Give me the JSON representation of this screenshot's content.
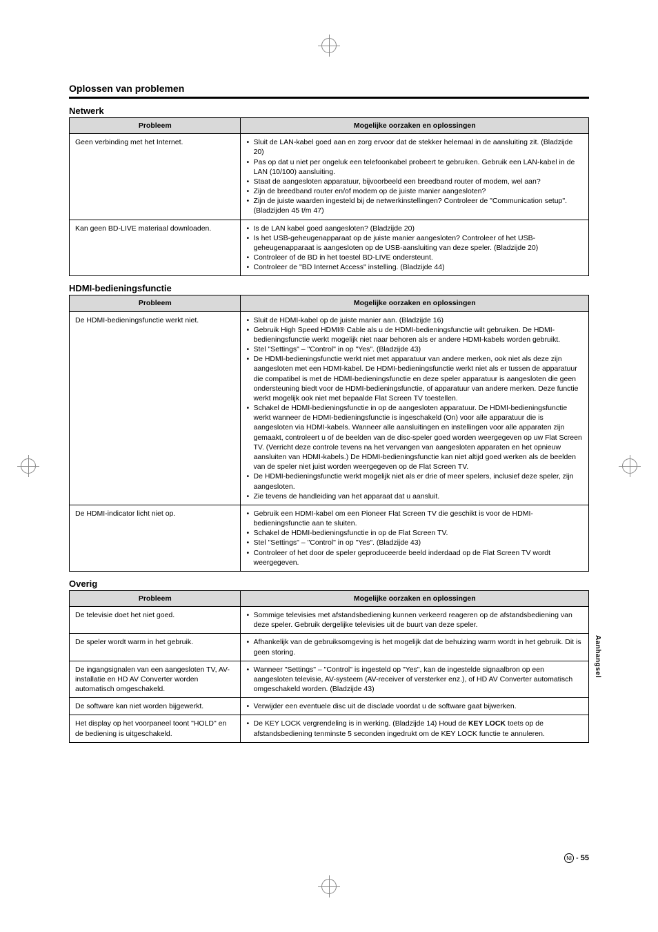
{
  "page": {
    "title": "Oplossen van problemen",
    "sideTab": "Aanhangsel",
    "pageNumber": "55",
    "langMark": "Nl"
  },
  "netwerk": {
    "heading": "Netwerk",
    "col1": "Probleem",
    "col2": "Mogelijke oorzaken en oplossingen",
    "rows": [
      {
        "p": "Geen verbinding met het Internet.",
        "items": [
          "Sluit de LAN-kabel goed aan en zorg ervoor dat de stekker helemaal in de aansluiting zit. (Bladzijde 20)",
          "Pas op dat u niet per ongeluk een telefoonkabel probeert te gebruiken. Gebruik een LAN-kabel in de LAN (10/100) aansluiting.",
          "Staat de aangesloten apparatuur, bijvoorbeeld een breedband router of modem, wel aan?",
          "Zijn de breedband router en/of modem op de juiste manier aangesloten?",
          "Zijn de juiste waarden ingesteld bij de netwerkinstellingen? Controleer de \"Communication setup\". (Bladzijden 45 t/m 47)"
        ]
      },
      {
        "p": "Kan geen BD-LIVE materiaal downloaden.",
        "items": [
          "Is de LAN kabel goed aangesloten? (Bladzijde 20)",
          "Is het USB-geheugenapparaat op de juiste manier aangesloten? Controleer of het USB-geheugenapparaat is aangesloten op de USB-aansluiting van deze speler. (Bladzijde 20)",
          "Controleer of de BD in het toestel BD-LIVE ondersteunt.",
          "Controleer de \"BD Internet Access\" instelling. (Bladzijde 44)"
        ]
      }
    ]
  },
  "hdmi": {
    "heading": "HDMI-bedieningsfunctie",
    "col1": "Probleem",
    "col2": "Mogelijke oorzaken en oplossingen",
    "rows": [
      {
        "p": "De HDMI-bedieningsfunctie werkt niet.",
        "items": [
          "Sluit de HDMI-kabel op de juiste manier aan. (Bladzijde 16)",
          "Gebruik High Speed HDMI® Cable als u de HDMI-bedieningsfunctie wilt gebruiken. De HDMI-bedieningsfunctie werkt mogelijk niet naar behoren als er andere HDMI-kabels worden gebruikt.",
          "Stel \"Settings\" – \"Control\" in op \"Yes\". (Bladzijde 43)",
          "De HDMI-bedieningsfunctie werkt niet met apparatuur van andere merken, ook niet als deze zijn aangesloten met een HDMI-kabel. De HDMI-bedieningsfunctie werkt niet als er tussen de apparatuur die compatibel is met de HDMI-bedieningsfunctie en deze speler apparatuur is aangesloten die geen ondersteuning biedt voor de HDMI-bedieningsfunctie, of apparatuur van andere merken. Deze functie werkt mogelijk ook niet met bepaalde Flat Screen TV toestellen.",
          "Schakel de HDMI-bedieningsfunctie in op de aangesloten apparatuur. De HDMI-bedieningsfunctie werkt wanneer de HDMI-bedieningsfunctie is ingeschakeld (On) voor alle apparatuur die is aangesloten via HDMI-kabels. Wanneer alle aansluitingen en instellingen voor alle apparaten zijn gemaakt, controleert u of de beelden van de disc-speler goed worden weergegeven op uw Flat Screen TV. (Verricht deze controle tevens na het vervangen van aangesloten apparaten en het opnieuw aansluiten van HDMI-kabels.) De HDMI-bedieningsfunctie kan niet altijd goed werken als de beelden van de speler niet juist worden weergegeven op de Flat Screen TV.",
          "De HDMI-bedieningsfunctie werkt mogelijk niet als er drie of meer spelers, inclusief deze speler, zijn aangesloten.",
          "Zie tevens de handleiding van het apparaat dat u aansluit."
        ]
      },
      {
        "p": "De HDMI-indicator licht niet op.",
        "items": [
          "Gebruik een HDMI-kabel om een Pioneer Flat Screen TV die geschikt is voor de HDMI-bedieningsfunctie aan te sluiten.",
          "Schakel de HDMI-bedieningsfunctie in op de Flat Screen TV.",
          "Stel \"Settings\" – \"Control\" in op \"Yes\". (Bladzijde 43)",
          "Controleer of het door de speler geproduceerde beeld inderdaad op de Flat Screen TV wordt weergegeven."
        ]
      }
    ]
  },
  "overig": {
    "heading": "Overig",
    "col1": "Probleem",
    "col2": "Mogelijke oorzaken en oplossingen",
    "rows": [
      {
        "p": "De televisie doet het niet goed.",
        "items": [
          "Sommige televisies met afstandsbediening kunnen verkeerd reageren op de afstandsbediening van deze speler. Gebruik dergelijke televisies uit de buurt van deze speler."
        ]
      },
      {
        "p": "De speler wordt warm in het gebruik.",
        "items": [
          "Afhankelijk van de gebruiksomgeving is het mogelijk dat de behuizing warm wordt in het gebruik. Dit is geen storing."
        ]
      },
      {
        "p": "De ingangsignalen van een aangesloten TV, AV-installatie en HD AV Converter worden automatisch omgeschakeld.",
        "items": [
          "Wanneer \"Settings\" – \"Control\" is ingesteld op \"Yes\", kan de ingestelde signaalbron op een aangesloten televisie, AV-systeem (AV-receiver of versterker enz.), of HD AV Converter automatisch omgeschakeld worden. (Bladzijde 43)"
        ]
      },
      {
        "p": "De software kan niet worden bijgewerkt.",
        "items": [
          "Verwijder een eventuele disc uit de disclade voordat u de software gaat bijwerken."
        ]
      },
      {
        "p": "Het display op het voorpaneel toont \"HOLD\" en de bediening is uitgeschakeld.",
        "html": "De KEY LOCK vergrendeling is in werking. (Bladzijde 14) Houd de <b>KEY LOCK</b> toets op de afstandsbediening tenminste 5 seconden ingedrukt om de KEY LOCK functie te annuleren."
      }
    ]
  }
}
